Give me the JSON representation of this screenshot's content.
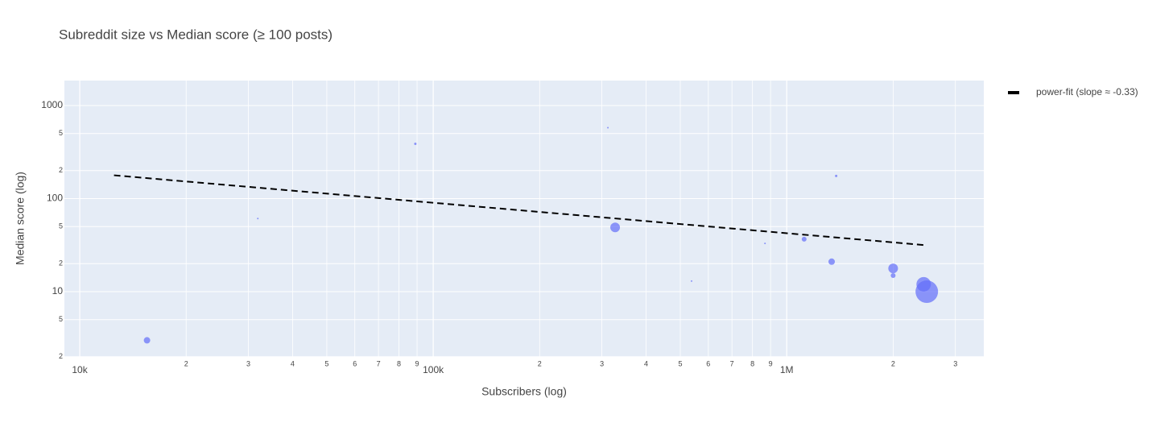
{
  "chart_data": {
    "type": "scatter",
    "title": "Subreddit size vs Median score (≥ 100 posts)",
    "x_label": "Subscribers (log)",
    "y_label": "Median score (log)",
    "xscale": "log",
    "yscale": "log",
    "grid": true,
    "legend": "top-right",
    "xlim": [
      9050,
      3610000
    ],
    "ylim": [
      1.99,
      1854
    ],
    "xticks": [
      {
        "value": 10000,
        "label": "10k"
      },
      20000,
      30000,
      40000,
      50000,
      60000,
      70000,
      80000,
      90000,
      {
        "value": 100000,
        "label": "100k"
      },
      200000,
      300000,
      400000,
      500000,
      600000,
      700000,
      800000,
      900000,
      {
        "value": 1000000,
        "label": "1M"
      },
      2000000,
      3000000
    ],
    "xtick_labels_small": [
      "2",
      "3",
      "4",
      "5",
      "6",
      "7",
      "8",
      "9"
    ],
    "yticks": [
      2,
      5,
      10,
      {
        "value": 20,
        "label": "2"
      },
      {
        "value": 50,
        "label": "5"
      },
      100,
      {
        "value": 200,
        "label": "2"
      },
      {
        "value": 500,
        "label": "5"
      },
      1000
    ],
    "series": [
      {
        "mode": "markers",
        "color": "#636efa",
        "x": [
          15500,
          31900,
          89000,
          312000,
          327000,
          538000,
          868000,
          1120000,
          1340000,
          1380000,
          2000000,
          2000000,
          2440000,
          2490000
        ],
        "values": [
          3,
          61,
          388,
          578,
          49,
          13,
          33,
          36.6,
          21,
          175,
          17.8,
          14.9,
          12,
          10
        ],
        "sizes": [
          8,
          2,
          3,
          2,
          12,
          2,
          2,
          6,
          8,
          3,
          12,
          6,
          18,
          28
        ]
      },
      {
        "mode": "lines",
        "name": "power-fit (slope ≈ -0.33)",
        "color": "#000000",
        "dash": "dash",
        "x": [
          12500,
          2490000
        ],
        "values": [
          178,
          31.5
        ]
      }
    ]
  }
}
